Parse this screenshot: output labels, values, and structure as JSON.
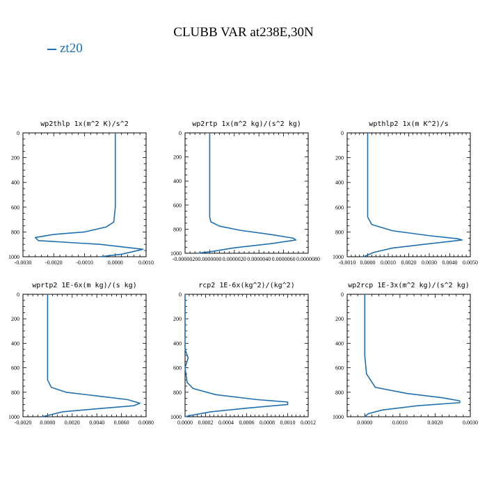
{
  "title": "CLUBB VAR at238E,30N",
  "legend": [
    "zt20"
  ],
  "series_color": "#1f6fb0",
  "chart_data": [
    {
      "type": "line",
      "title": "wp2thlp  1x(m^2 K)/s^2",
      "xlim": [
        -0.003,
        0.001
      ],
      "ylim": [
        1000,
        0
      ],
      "xticks": [
        "-0.0030",
        "-0.0020",
        "-0.0010",
        "0.0000",
        "0.0010"
      ],
      "xtick_values": [
        -0.003,
        -0.002,
        -0.001,
        0.0,
        0.001
      ],
      "yticks": [
        "0",
        "200",
        "400",
        "600",
        "800",
        "1000"
      ],
      "ytick_values": [
        0,
        200,
        400,
        600,
        800,
        1000
      ],
      "series": [
        {
          "name": "zt20",
          "points": [
            [
              0.0,
              0
            ],
            [
              0.0,
              600
            ],
            [
              -5e-05,
              720
            ],
            [
              -0.0003,
              760
            ],
            [
              -0.001,
              800
            ],
            [
              -0.002,
              820
            ],
            [
              -0.0026,
              845
            ],
            [
              -0.0025,
              870
            ],
            [
              -0.0005,
              900
            ],
            [
              0.0009,
              940
            ],
            [
              0.0002,
              980
            ],
            [
              -0.0005,
              1000
            ]
          ]
        }
      ]
    },
    {
      "type": "line",
      "title": "wp2rtp  1x(m^2 kg)/(s^2 kg)",
      "xlim": [
        -2e-06,
        8e-06
      ],
      "ylim": [
        1000,
        0
      ],
      "xticks": [
        "-0.0000020",
        "0.0000000",
        "0.0000020",
        "0.0000040",
        "0.0000060",
        "0.0000080"
      ],
      "xtick_values": [
        -2e-06,
        0.0,
        2e-06,
        4e-06,
        6e-06,
        8e-06
      ],
      "yticks": [
        "0",
        "200",
        "400",
        "600",
        "800",
        "1000"
      ],
      "ytick_values": [
        0,
        200,
        400,
        600,
        800,
        1000
      ],
      "series": [
        {
          "name": "zt20",
          "points": [
            [
              0.0,
              0
            ],
            [
              0.0,
              700
            ],
            [
              1e-07,
              740
            ],
            [
              8e-07,
              775
            ],
            [
              2.5e-06,
              810
            ],
            [
              5e-06,
              845
            ],
            [
              6.8e-06,
              875
            ],
            [
              7e-06,
              890
            ],
            [
              5e-06,
              920
            ],
            [
              2e-06,
              955
            ],
            [
              2e-07,
              985
            ],
            [
              -1e-06,
              1000
            ]
          ]
        }
      ]
    },
    {
      "type": "line",
      "title": "wpthlp2  1x(m K^2)/s",
      "xlim": [
        -0.001,
        0.005
      ],
      "ylim": [
        1000,
        0
      ],
      "xticks": [
        "-0.0010",
        "0.0000",
        "0.0010",
        "0.0020",
        "0.0030",
        "0.0040",
        "0.0050"
      ],
      "xtick_values": [
        -0.001,
        0.0,
        0.001,
        0.002,
        0.003,
        0.004,
        0.005
      ],
      "yticks": [
        "0",
        "200",
        "400",
        "600",
        "800",
        "1000"
      ],
      "ytick_values": [
        0,
        200,
        400,
        600,
        800,
        1000
      ],
      "series": [
        {
          "name": "zt20",
          "points": [
            [
              0.0,
              0
            ],
            [
              0.0,
              680
            ],
            [
              0.0002,
              740
            ],
            [
              0.0012,
              790
            ],
            [
              0.003,
              830
            ],
            [
              0.0044,
              855
            ],
            [
              0.0046,
              865
            ],
            [
              0.003,
              895
            ],
            [
              0.0012,
              930
            ],
            [
              0.0003,
              965
            ],
            [
              -0.0002,
              1000
            ]
          ]
        }
      ]
    },
    {
      "type": "line",
      "title": "wprtp2  1E-6x(m kg)/(s kg)",
      "xlim": [
        -0.002,
        0.008
      ],
      "ylim": [
        1000,
        0
      ],
      "xticks": [
        "-0.0020",
        "0.0000",
        "0.0020",
        "0.0040",
        "0.0060",
        "0.0080"
      ],
      "xtick_values": [
        -0.002,
        0.0,
        0.002,
        0.004,
        0.006,
        0.008
      ],
      "yticks": [
        "0",
        "200",
        "400",
        "600",
        "800",
        "1000"
      ],
      "ytick_values": [
        0,
        200,
        400,
        600,
        800,
        1000
      ],
      "series": [
        {
          "name": "zt20",
          "points": [
            [
              0.0,
              0
            ],
            [
              0.0,
              700
            ],
            [
              0.0003,
              760
            ],
            [
              0.0015,
              800
            ],
            [
              0.004,
              830
            ],
            [
              0.0065,
              860
            ],
            [
              0.0075,
              890
            ],
            [
              0.007,
              910
            ],
            [
              0.004,
              935
            ],
            [
              0.0012,
              960
            ],
            [
              0.0,
              990
            ],
            [
              -0.0005,
              1000
            ]
          ]
        }
      ]
    },
    {
      "type": "line",
      "title": "rcp2  1E-6x(kg^2)/(kg^2)",
      "xlim": [
        0.0,
        0.0012
      ],
      "ylim": [
        1000,
        0
      ],
      "xticks": [
        "0.0000",
        "0.0002",
        "0.0004",
        "0.0006",
        "0.0008",
        "0.0010",
        "0.0012"
      ],
      "xtick_values": [
        0.0,
        0.0002,
        0.0004,
        0.0006,
        0.0008,
        0.001,
        0.0012
      ],
      "yticks": [
        "0",
        "200",
        "400",
        "600",
        "800",
        "1000"
      ],
      "ytick_values": [
        0,
        200,
        400,
        600,
        800,
        1000
      ],
      "series": [
        {
          "name": "zt20",
          "points": [
            [
              0.0,
              0
            ],
            [
              0.0,
              450
            ],
            [
              3e-05,
              520
            ],
            [
              0.0,
              600
            ],
            [
              2e-05,
              720
            ],
            [
              8e-05,
              770
            ],
            [
              0.0003,
              820
            ],
            [
              0.0007,
              860
            ],
            [
              0.001,
              880
            ],
            [
              0.001,
              900
            ],
            [
              0.0006,
              930
            ],
            [
              0.00025,
              960
            ],
            [
              5e-05,
              990
            ],
            [
              0.0,
              1000
            ]
          ]
        }
      ]
    },
    {
      "type": "line",
      "title": "wp2rcp  1E-3x(m^2 kg)/(s^2 kg)",
      "xlim": [
        -0.0005,
        0.003
      ],
      "ylim": [
        1000,
        0
      ],
      "xticks": [
        "0.0000",
        "0.0010",
        "0.0020",
        "0.0030"
      ],
      "xtick_values": [
        0.0,
        0.001,
        0.002,
        0.003
      ],
      "yticks": [
        "0",
        "200",
        "400",
        "600",
        "800",
        "1000"
      ],
      "ytick_values": [
        0,
        200,
        400,
        600,
        800,
        1000
      ],
      "series": [
        {
          "name": "zt20",
          "points": [
            [
              0.0,
              0
            ],
            [
              0.0,
              500
            ],
            [
              5e-05,
              650
            ],
            [
              0.0003,
              760
            ],
            [
              0.0012,
              810
            ],
            [
              0.0022,
              845
            ],
            [
              0.0027,
              870
            ],
            [
              0.0027,
              885
            ],
            [
              0.0015,
              910
            ],
            [
              0.0005,
              945
            ],
            [
              0.0001,
              975
            ],
            [
              0.0,
              1000
            ]
          ]
        }
      ]
    }
  ]
}
